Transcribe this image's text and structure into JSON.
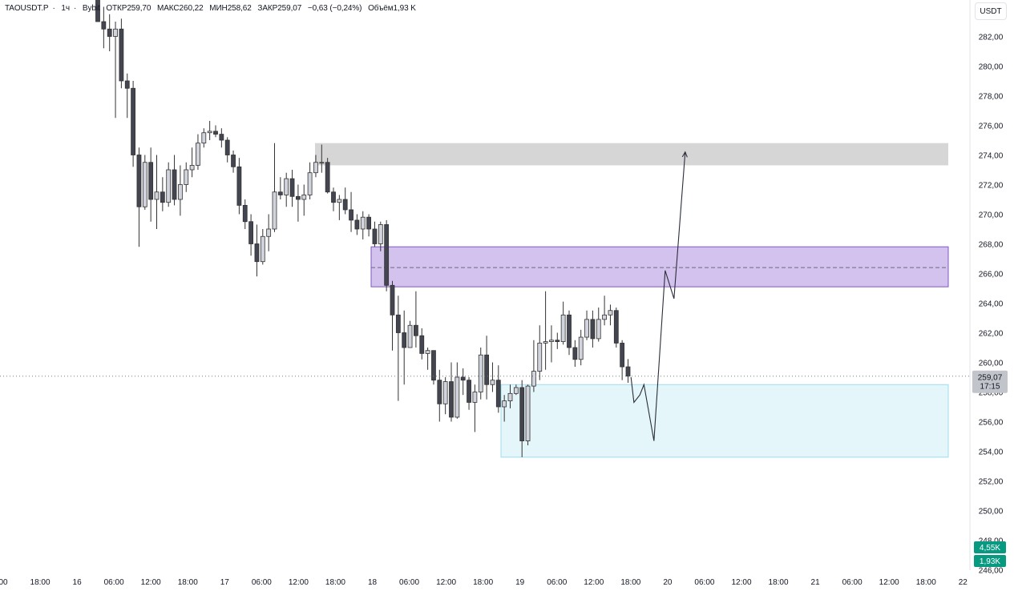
{
  "header": {
    "symbol": "TAOUSDT.P",
    "interval": "1ч",
    "exchange": "Bybit",
    "open_label": "ОТКР",
    "open_value": "259,70",
    "high_label": "МАКС",
    "high_value": "260,22",
    "low_label": "МИН",
    "low_value": "258,62",
    "close_label": "ЗАКР",
    "close_value": "259,07",
    "change": "−0,63 (−0,24%)",
    "volume_label": "Объём",
    "volume_value": "1,93 K"
  },
  "currency_button": "USDT",
  "price_axis": {
    "ticks": [
      "282,00",
      "280,00",
      "278,00",
      "276,00",
      "274,00",
      "272,00",
      "270,00",
      "268,00",
      "266,00",
      "264,00",
      "262,00",
      "260,00",
      "258,00",
      "256,00",
      "254,00",
      "252,00",
      "250,00",
      "248,00",
      "246,00"
    ]
  },
  "time_axis": {
    "ticks": [
      "00",
      "18:00",
      "16",
      "06:00",
      "12:00",
      "18:00",
      "17",
      "06:00",
      "12:00",
      "18:00",
      "18",
      "06:00",
      "12:00",
      "18:00",
      "19",
      "06:00",
      "12:00",
      "18:00",
      "20",
      "06:00",
      "12:00",
      "18:00",
      "21",
      "06:00",
      "12:00",
      "18:00",
      "22"
    ]
  },
  "current_price": {
    "price": "259,07",
    "countdown": "17:15"
  },
  "volume_badges": [
    "4,55K",
    "1,93K"
  ],
  "colors": {
    "candle_up": "#d1d4dc",
    "candle_down": "#434651",
    "candle_border": "#333333",
    "gray_zone": "#d6d6d6",
    "purple_zone": "#d4c2ee",
    "purple_border": "#7e57c2",
    "cyan_zone": "#e4f6fa",
    "cyan_border": "#9fdceb",
    "badge_teal": "#089981"
  },
  "chart_data": {
    "type": "candlestick",
    "symbol": "TAOUSDT.P",
    "interval": "1h",
    "ylim": [
      246,
      284
    ],
    "candles": [
      {
        "o": 284.5,
        "h": 285.5,
        "l": 283.0,
        "c": 283.0
      },
      {
        "o": 283.0,
        "h": 284.0,
        "l": 281.2,
        "c": 282.5
      },
      {
        "o": 282.5,
        "h": 283.5,
        "l": 281.0,
        "c": 282.0
      },
      {
        "o": 282.0,
        "h": 283.0,
        "l": 276.5,
        "c": 282.5
      },
      {
        "o": 282.5,
        "h": 283.2,
        "l": 278.5,
        "c": 279.0
      },
      {
        "o": 279.0,
        "h": 279.5,
        "l": 276.5,
        "c": 278.5
      },
      {
        "o": 278.5,
        "h": 279.0,
        "l": 273.2,
        "c": 274.0
      },
      {
        "o": 274.0,
        "h": 274.5,
        "l": 267.8,
        "c": 270.5
      },
      {
        "o": 270.5,
        "h": 274.0,
        "l": 270.3,
        "c": 273.5
      },
      {
        "o": 273.5,
        "h": 274.5,
        "l": 269.5,
        "c": 271.0
      },
      {
        "o": 271.0,
        "h": 274.0,
        "l": 269.0,
        "c": 271.5
      },
      {
        "o": 271.5,
        "h": 272.5,
        "l": 270.2,
        "c": 270.8
      },
      {
        "o": 270.8,
        "h": 273.5,
        "l": 270.5,
        "c": 273.0
      },
      {
        "o": 273.0,
        "h": 274.0,
        "l": 270.6,
        "c": 271.0
      },
      {
        "o": 271.0,
        "h": 273.3,
        "l": 269.9,
        "c": 272.0
      },
      {
        "o": 272.0,
        "h": 273.5,
        "l": 271.5,
        "c": 273.0
      },
      {
        "o": 273.0,
        "h": 274.5,
        "l": 272.5,
        "c": 273.3
      },
      {
        "o": 273.3,
        "h": 275.4,
        "l": 273.0,
        "c": 274.8
      },
      {
        "o": 274.8,
        "h": 275.8,
        "l": 274.5,
        "c": 275.5
      },
      {
        "o": 275.5,
        "h": 276.3,
        "l": 275.0,
        "c": 275.6
      },
      {
        "o": 275.6,
        "h": 276.0,
        "l": 275.2,
        "c": 275.4
      },
      {
        "o": 275.4,
        "h": 275.8,
        "l": 274.5,
        "c": 275.0
      },
      {
        "o": 275.0,
        "h": 275.2,
        "l": 273.5,
        "c": 274.0
      },
      {
        "o": 274.0,
        "h": 274.3,
        "l": 272.8,
        "c": 273.2
      },
      {
        "o": 273.2,
        "h": 273.8,
        "l": 270.0,
        "c": 270.6
      },
      {
        "o": 270.6,
        "h": 271.0,
        "l": 269.0,
        "c": 269.5
      },
      {
        "o": 269.5,
        "h": 270.0,
        "l": 267.2,
        "c": 268.0
      },
      {
        "o": 268.0,
        "h": 269.3,
        "l": 265.8,
        "c": 266.8
      },
      {
        "o": 266.8,
        "h": 269.0,
        "l": 266.6,
        "c": 268.5
      },
      {
        "o": 268.5,
        "h": 270.0,
        "l": 267.5,
        "c": 269.0
      },
      {
        "o": 269.0,
        "h": 274.8,
        "l": 268.8,
        "c": 271.5
      },
      {
        "o": 271.5,
        "h": 272.5,
        "l": 271.0,
        "c": 271.3
      },
      {
        "o": 271.3,
        "h": 272.8,
        "l": 270.5,
        "c": 272.4
      },
      {
        "o": 272.4,
        "h": 273.0,
        "l": 270.5,
        "c": 271.2
      },
      {
        "o": 271.2,
        "h": 272.0,
        "l": 269.5,
        "c": 271.0
      },
      {
        "o": 271.0,
        "h": 272.0,
        "l": 269.9,
        "c": 271.3
      },
      {
        "o": 271.3,
        "h": 273.5,
        "l": 271.0,
        "c": 272.8
      },
      {
        "o": 272.8,
        "h": 274.0,
        "l": 272.5,
        "c": 273.5
      },
      {
        "o": 273.5,
        "h": 274.7,
        "l": 272.8,
        "c": 273.5
      },
      {
        "o": 273.5,
        "h": 273.8,
        "l": 271.4,
        "c": 271.5
      },
      {
        "o": 271.5,
        "h": 271.8,
        "l": 270.2,
        "c": 270.8
      },
      {
        "o": 270.8,
        "h": 271.3,
        "l": 269.6,
        "c": 271.0
      },
      {
        "o": 271.0,
        "h": 271.8,
        "l": 270.0,
        "c": 270.3
      },
      {
        "o": 270.3,
        "h": 271.5,
        "l": 268.8,
        "c": 269.6
      },
      {
        "o": 269.6,
        "h": 270.0,
        "l": 268.6,
        "c": 269.0
      },
      {
        "o": 269.0,
        "h": 270.2,
        "l": 268.3,
        "c": 269.8
      },
      {
        "o": 269.8,
        "h": 270.0,
        "l": 268.5,
        "c": 269.0
      },
      {
        "o": 269.0,
        "h": 269.5,
        "l": 267.8,
        "c": 268.0
      },
      {
        "o": 268.0,
        "h": 269.5,
        "l": 267.5,
        "c": 269.3
      },
      {
        "o": 269.3,
        "h": 269.6,
        "l": 264.8,
        "c": 265.2
      },
      {
        "o": 265.2,
        "h": 265.5,
        "l": 260.8,
        "c": 263.2
      },
      {
        "o": 263.2,
        "h": 264.5,
        "l": 257.4,
        "c": 262.0
      },
      {
        "o": 262.0,
        "h": 263.5,
        "l": 258.5,
        "c": 261.0
      },
      {
        "o": 261.0,
        "h": 262.8,
        "l": 261.0,
        "c": 262.5
      },
      {
        "o": 262.5,
        "h": 264.8,
        "l": 261.0,
        "c": 261.8
      },
      {
        "o": 261.8,
        "h": 262.3,
        "l": 260.2,
        "c": 260.6
      },
      {
        "o": 260.6,
        "h": 261.0,
        "l": 259.5,
        "c": 260.8
      },
      {
        "o": 260.8,
        "h": 260.8,
        "l": 258.5,
        "c": 258.8
      },
      {
        "o": 258.8,
        "h": 259.5,
        "l": 256.0,
        "c": 257.2
      },
      {
        "o": 257.2,
        "h": 259.0,
        "l": 256.5,
        "c": 258.7
      },
      {
        "o": 258.7,
        "h": 260.0,
        "l": 256.0,
        "c": 256.3
      },
      {
        "o": 256.3,
        "h": 260.0,
        "l": 256.2,
        "c": 259.0
      },
      {
        "o": 259.0,
        "h": 259.6,
        "l": 257.8,
        "c": 258.8
      },
      {
        "o": 258.8,
        "h": 259.0,
        "l": 256.8,
        "c": 257.3
      },
      {
        "o": 257.3,
        "h": 258.5,
        "l": 255.3,
        "c": 258.0
      },
      {
        "o": 258.0,
        "h": 261.0,
        "l": 257.5,
        "c": 260.5
      },
      {
        "o": 260.5,
        "h": 261.8,
        "l": 257.5,
        "c": 258.5
      },
      {
        "o": 258.5,
        "h": 260.0,
        "l": 258.0,
        "c": 258.8
      },
      {
        "o": 258.8,
        "h": 259.8,
        "l": 256.6,
        "c": 257.0
      },
      {
        "o": 257.0,
        "h": 257.8,
        "l": 256.0,
        "c": 257.4
      },
      {
        "o": 257.4,
        "h": 258.5,
        "l": 256.9,
        "c": 257.9
      },
      {
        "o": 257.9,
        "h": 258.5,
        "l": 257.8,
        "c": 258.3
      },
      {
        "o": 258.3,
        "h": 258.8,
        "l": 253.6,
        "c": 254.7
      },
      {
        "o": 254.7,
        "h": 258.5,
        "l": 254.4,
        "c": 258.4
      },
      {
        "o": 258.4,
        "h": 261.5,
        "l": 258.0,
        "c": 259.4
      },
      {
        "o": 259.4,
        "h": 262.5,
        "l": 258.8,
        "c": 261.3
      },
      {
        "o": 261.3,
        "h": 264.8,
        "l": 259.5,
        "c": 261.4
      },
      {
        "o": 261.4,
        "h": 262.5,
        "l": 260.0,
        "c": 261.5
      },
      {
        "o": 261.5,
        "h": 262.0,
        "l": 260.9,
        "c": 261.4
      },
      {
        "o": 261.4,
        "h": 264.1,
        "l": 261.2,
        "c": 263.2
      },
      {
        "o": 263.2,
        "h": 263.5,
        "l": 260.5,
        "c": 261.0
      },
      {
        "o": 261.0,
        "h": 261.5,
        "l": 259.7,
        "c": 260.2
      },
      {
        "o": 260.2,
        "h": 262.2,
        "l": 259.8,
        "c": 261.7
      },
      {
        "o": 261.7,
        "h": 263.5,
        "l": 261.5,
        "c": 262.9
      },
      {
        "o": 262.9,
        "h": 263.5,
        "l": 261.0,
        "c": 261.6
      },
      {
        "o": 261.6,
        "h": 263.7,
        "l": 261.4,
        "c": 262.9
      },
      {
        "o": 262.9,
        "h": 264.5,
        "l": 262.5,
        "c": 263.2
      },
      {
        "o": 263.2,
        "h": 263.9,
        "l": 262.5,
        "c": 263.5
      },
      {
        "o": 263.5,
        "h": 263.7,
        "l": 261.0,
        "c": 261.3
      },
      {
        "o": 261.3,
        "h": 261.5,
        "l": 258.8,
        "c": 259.7
      },
      {
        "o": 259.7,
        "h": 260.22,
        "l": 258.62,
        "c": 259.07
      }
    ],
    "zones": [
      {
        "name": "gray",
        "from": 273.3,
        "to": 274.8
      },
      {
        "name": "purple",
        "from": 265.1,
        "to": 267.8,
        "midline": 266.4
      },
      {
        "name": "cyan",
        "from": 253.6,
        "to": 258.5
      }
    ],
    "projection": [
      {
        "t": 90.5,
        "p": 259.0
      },
      {
        "t": 91.0,
        "p": 257.3
      },
      {
        "t": 92.0,
        "p": 257.8
      },
      {
        "t": 92.7,
        "p": 258.5
      },
      {
        "t": 94.4,
        "p": 254.7
      },
      {
        "t": 96.3,
        "p": 266.2
      },
      {
        "t": 97.8,
        "p": 264.3
      },
      {
        "t": 99.7,
        "p": 274.2
      }
    ],
    "current_price": 259.07
  }
}
